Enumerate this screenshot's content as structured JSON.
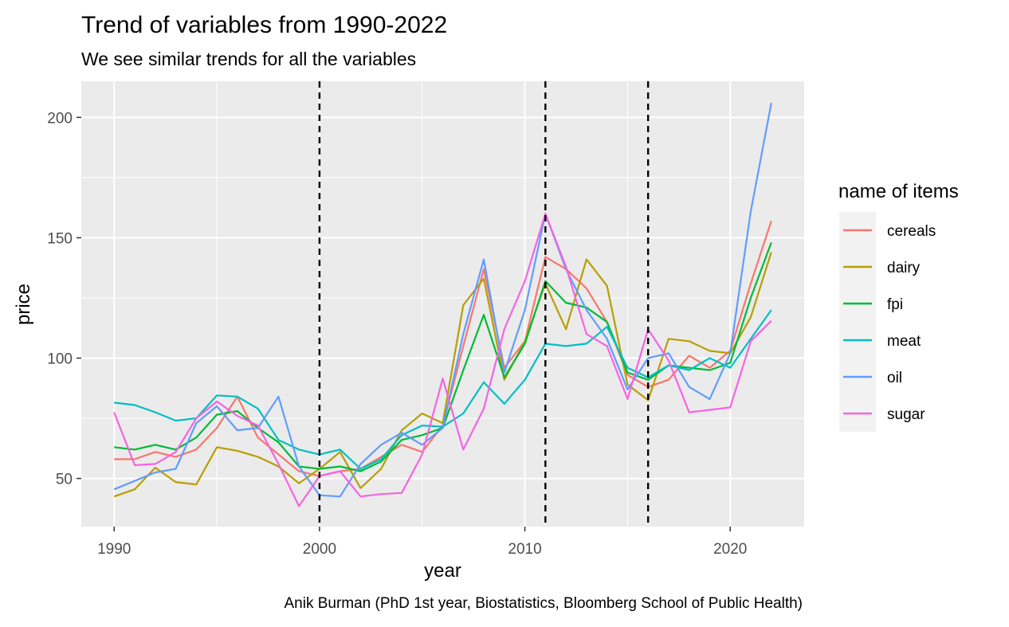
{
  "chart_data": {
    "type": "line",
    "title": "Trend of variables from 1990-2022",
    "subtitle": "We see similar trends for all the variables",
    "xlabel": "year",
    "ylabel": "price",
    "caption": "Anik Burman (PhD 1st year, Biostatistics, Bloomberg School of Public Health)",
    "xlim": [
      1988.4,
      2023.6
    ],
    "ylim": [
      30,
      215
    ],
    "x_ticks": [
      1990,
      2000,
      2010,
      2020
    ],
    "y_ticks": [
      50,
      100,
      150,
      200
    ],
    "grid": true,
    "legend": {
      "title": "name of items",
      "position": "right"
    },
    "reference_lines_x": [
      2000,
      2011,
      2016
    ],
    "x": [
      1990,
      1991,
      1992,
      1993,
      1994,
      1995,
      1996,
      1997,
      1998,
      1999,
      2000,
      2001,
      2002,
      2003,
      2004,
      2005,
      2006,
      2007,
      2008,
      2009,
      2010,
      2011,
      2012,
      2013,
      2014,
      2015,
      2016,
      2017,
      2018,
      2019,
      2020,
      2021,
      2022
    ],
    "series": [
      {
        "name": "cereals",
        "color": "#F8766D",
        "values": [
          58,
          58,
          61,
          59,
          62,
          71,
          84,
          67,
          60,
          53,
          51,
          53,
          54,
          59,
          64,
          61,
          72,
          105,
          137,
          96,
          107,
          142,
          137,
          129,
          115,
          93,
          88,
          91,
          101,
          96,
          103,
          131,
          157
        ]
      },
      {
        "name": "dairy",
        "color": "#B79F00",
        "values": [
          42.5,
          45.5,
          54.5,
          48.5,
          47.5,
          63,
          61.5,
          59,
          55,
          48,
          54,
          61,
          46,
          54,
          70,
          77,
          73,
          122,
          133,
          91,
          107,
          131,
          112,
          141,
          130,
          89,
          82.5,
          108,
          107,
          103,
          102,
          117,
          144
        ]
      },
      {
        "name": "fpi",
        "color": "#00BA38",
        "values": [
          63,
          62,
          64,
          62,
          67,
          76.5,
          78,
          71,
          65,
          55,
          54,
          55,
          53,
          57,
          66,
          68,
          71,
          95,
          118,
          92,
          106,
          132,
          123,
          121,
          115,
          94,
          91,
          97,
          96,
          95,
          98,
          125,
          148
        ]
      },
      {
        "name": "meat",
        "color": "#00BFC4",
        "values": [
          81.5,
          80.5,
          77.5,
          74,
          75,
          84.5,
          84,
          79,
          66,
          62,
          60,
          62,
          54,
          58,
          68,
          72,
          71.5,
          77,
          90,
          81,
          91,
          106,
          105,
          106,
          113,
          96,
          92,
          97,
          95,
          100,
          96,
          108,
          120
        ]
      },
      {
        "name": "oil",
        "color": "#619CFF",
        "values": [
          45.5,
          49,
          52.5,
          54,
          73,
          80,
          70,
          71,
          84,
          55,
          43,
          42.5,
          56,
          64,
          69,
          64,
          71,
          110,
          141,
          94,
          120,
          160,
          137,
          120,
          108,
          87,
          100,
          102,
          88,
          83,
          102,
          161,
          206
        ]
      },
      {
        "name": "sugar",
        "color": "#F564E3",
        "values": [
          77.5,
          55.5,
          56,
          61,
          75,
          82,
          76,
          72,
          56,
          38.5,
          51,
          53,
          42.5,
          43.5,
          44,
          60,
          91.5,
          62,
          79,
          112,
          132,
          160,
          138,
          110,
          105,
          83,
          112,
          99,
          77.5,
          78.5,
          79.5,
          107,
          115.5
        ]
      }
    ]
  }
}
